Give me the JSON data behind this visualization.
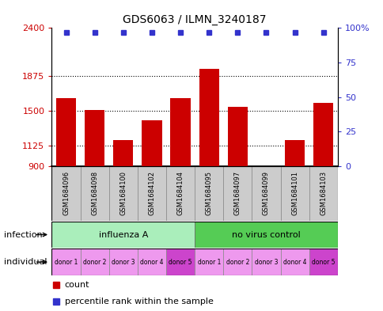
{
  "title": "GDS6063 / ILMN_3240187",
  "samples": [
    "GSM1684096",
    "GSM1684098",
    "GSM1684100",
    "GSM1684102",
    "GSM1684104",
    "GSM1684095",
    "GSM1684097",
    "GSM1684099",
    "GSM1684101",
    "GSM1684103"
  ],
  "counts": [
    1640,
    1510,
    1180,
    1400,
    1640,
    1960,
    1540,
    900,
    1180,
    1590
  ],
  "percentile_pct": 97,
  "ymin": 900,
  "ymax": 2400,
  "yticks": [
    900,
    1125,
    1500,
    1875,
    2400
  ],
  "ytick_labels": [
    "900",
    "1125",
    "1500",
    "1875",
    "2400"
  ],
  "right_ytick_pcts": [
    0,
    25,
    50,
    75,
    100
  ],
  "right_ytick_labels": [
    "0",
    "25",
    "50",
    "75",
    "100%"
  ],
  "bar_color": "#cc0000",
  "dot_color": "#3333cc",
  "gridline_color": "#000000",
  "infection_groups": [
    {
      "label": "influenza A",
      "start": 0,
      "end": 5,
      "color": "#aaeebb"
    },
    {
      "label": "no virus control",
      "start": 5,
      "end": 10,
      "color": "#55cc55"
    }
  ],
  "individual_labels": [
    "donor 1",
    "donor 2",
    "donor 3",
    "donor 4",
    "donor 5",
    "donor 1",
    "donor 2",
    "donor 3",
    "donor 4",
    "donor 5"
  ],
  "individual_colors": [
    "#ee99ee",
    "#ee99ee",
    "#ee99ee",
    "#ee99ee",
    "#cc44cc",
    "#ee99ee",
    "#ee99ee",
    "#ee99ee",
    "#ee99ee",
    "#cc44cc"
  ],
  "infection_row_label": "infection",
  "individual_row_label": "individual",
  "legend_count_label": "count",
  "legend_percentile_label": "percentile rank within the sample",
  "bar_width": 0.7,
  "sample_row_color": "#cccccc",
  "fig_width": 4.85,
  "fig_height": 3.93,
  "fig_dpi": 100
}
